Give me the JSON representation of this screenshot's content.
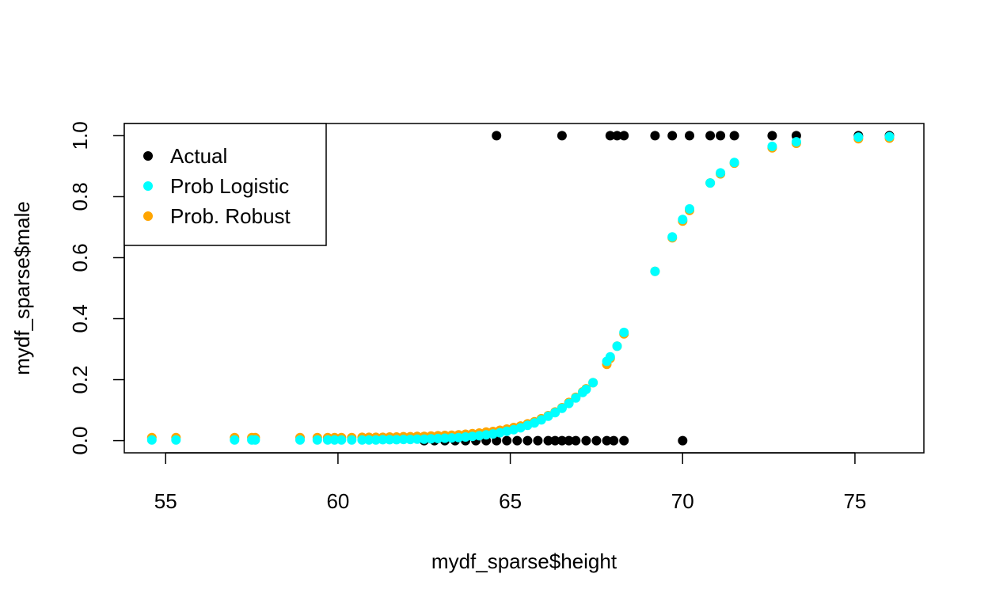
{
  "chart_data": {
    "type": "scatter",
    "title": "",
    "xlabel": "mydf_sparse$height",
    "ylabel": "mydf_sparse$male",
    "xlim": [
      53.8,
      77.0
    ],
    "ylim": [
      -0.04,
      1.04
    ],
    "x_ticks": [
      55,
      60,
      65,
      70,
      75
    ],
    "x_tick_labels": [
      "55",
      "60",
      "65",
      "70",
      "75"
    ],
    "y_ticks": [
      0.0,
      0.2,
      0.4,
      0.6,
      0.8,
      1.0
    ],
    "y_tick_labels": [
      "0.0",
      "0.2",
      "0.4",
      "0.6",
      "0.8",
      "1.0"
    ],
    "grid": false,
    "legend_position": "top-left",
    "series": [
      {
        "name": "Actual",
        "color": "#000000",
        "points": [
          [
            64.6,
            1
          ],
          [
            66.5,
            1
          ],
          [
            67.9,
            1
          ],
          [
            68.1,
            1
          ],
          [
            68.3,
            1
          ],
          [
            69.2,
            1
          ],
          [
            69.7,
            1
          ],
          [
            70.2,
            1
          ],
          [
            70.8,
            1
          ],
          [
            71.1,
            1
          ],
          [
            71.5,
            1
          ],
          [
            72.6,
            1
          ],
          [
            73.3,
            1
          ],
          [
            75.1,
            1
          ],
          [
            76.0,
            1
          ],
          [
            62.5,
            0
          ],
          [
            62.8,
            0
          ],
          [
            63.1,
            0
          ],
          [
            63.4,
            0
          ],
          [
            63.7,
            0
          ],
          [
            64.0,
            0
          ],
          [
            64.3,
            0
          ],
          [
            64.6,
            0
          ],
          [
            64.9,
            0
          ],
          [
            65.2,
            0
          ],
          [
            65.5,
            0
          ],
          [
            65.8,
            0
          ],
          [
            66.1,
            0
          ],
          [
            66.3,
            0
          ],
          [
            66.5,
            0
          ],
          [
            66.7,
            0
          ],
          [
            66.9,
            0
          ],
          [
            67.2,
            0
          ],
          [
            67.5,
            0
          ],
          [
            67.8,
            0
          ],
          [
            68.0,
            0
          ],
          [
            68.3,
            0
          ],
          [
            70.0,
            0
          ]
        ]
      },
      {
        "name": "Prob. Robust",
        "color": "#FFA500",
        "points": [
          [
            54.6,
            0.01
          ],
          [
            55.3,
            0.01
          ],
          [
            57.0,
            0.01
          ],
          [
            57.5,
            0.01
          ],
          [
            57.6,
            0.01
          ],
          [
            58.9,
            0.01
          ],
          [
            59.4,
            0.01
          ],
          [
            59.7,
            0.01
          ],
          [
            59.9,
            0.01
          ],
          [
            60.1,
            0.01
          ],
          [
            60.4,
            0.01
          ],
          [
            60.7,
            0.011
          ],
          [
            60.9,
            0.011
          ],
          [
            61.1,
            0.011
          ],
          [
            61.3,
            0.011
          ],
          [
            61.5,
            0.012
          ],
          [
            61.7,
            0.012
          ],
          [
            61.9,
            0.013
          ],
          [
            62.1,
            0.013
          ],
          [
            62.3,
            0.014
          ],
          [
            62.5,
            0.014
          ],
          [
            62.7,
            0.015
          ],
          [
            62.9,
            0.016
          ],
          [
            63.1,
            0.017
          ],
          [
            63.3,
            0.018
          ],
          [
            63.5,
            0.019
          ],
          [
            63.7,
            0.021
          ],
          [
            63.9,
            0.023
          ],
          [
            64.1,
            0.025
          ],
          [
            64.3,
            0.028
          ],
          [
            64.5,
            0.03
          ],
          [
            64.7,
            0.034
          ],
          [
            64.9,
            0.038
          ],
          [
            65.1,
            0.043
          ],
          [
            65.3,
            0.048
          ],
          [
            65.5,
            0.055
          ],
          [
            65.7,
            0.062
          ],
          [
            65.9,
            0.072
          ],
          [
            66.1,
            0.082
          ],
          [
            66.3,
            0.094
          ],
          [
            66.5,
            0.108
          ],
          [
            66.7,
            0.125
          ],
          [
            66.9,
            0.142
          ],
          [
            67.1,
            0.16
          ],
          [
            67.2,
            0.17
          ],
          [
            67.4,
            0.19
          ],
          [
            67.8,
            0.25
          ],
          [
            67.9,
            0.27
          ],
          [
            68.1,
            0.31
          ],
          [
            68.3,
            0.35
          ],
          [
            69.2,
            0.555
          ],
          [
            69.7,
            0.665
          ],
          [
            70.0,
            0.72
          ],
          [
            70.2,
            0.755
          ],
          [
            70.8,
            0.845
          ],
          [
            71.1,
            0.875
          ],
          [
            71.5,
            0.91
          ],
          [
            72.6,
            0.96
          ],
          [
            73.3,
            0.975
          ],
          [
            75.1,
            0.99
          ],
          [
            76.0,
            0.992
          ]
        ]
      },
      {
        "name": "Prob Logistic",
        "color": "#00FFFF",
        "points": [
          [
            54.6,
            0.002
          ],
          [
            55.3,
            0.002
          ],
          [
            57.0,
            0.002
          ],
          [
            57.5,
            0.002
          ],
          [
            57.6,
            0.002
          ],
          [
            58.9,
            0.002
          ],
          [
            59.4,
            0.002
          ],
          [
            59.7,
            0.002
          ],
          [
            59.9,
            0.002
          ],
          [
            60.1,
            0.002
          ],
          [
            60.4,
            0.002
          ],
          [
            60.7,
            0.002
          ],
          [
            60.9,
            0.002
          ],
          [
            61.1,
            0.002
          ],
          [
            61.3,
            0.003
          ],
          [
            61.5,
            0.003
          ],
          [
            61.7,
            0.003
          ],
          [
            61.9,
            0.004
          ],
          [
            62.1,
            0.004
          ],
          [
            62.3,
            0.005
          ],
          [
            62.5,
            0.005
          ],
          [
            62.7,
            0.006
          ],
          [
            62.9,
            0.007
          ],
          [
            63.1,
            0.008
          ],
          [
            63.3,
            0.009
          ],
          [
            63.5,
            0.01
          ],
          [
            63.7,
            0.012
          ],
          [
            63.9,
            0.014
          ],
          [
            64.1,
            0.016
          ],
          [
            64.3,
            0.019
          ],
          [
            64.5,
            0.022
          ],
          [
            64.7,
            0.026
          ],
          [
            64.9,
            0.031
          ],
          [
            65.1,
            0.036
          ],
          [
            65.3,
            0.042
          ],
          [
            65.5,
            0.05
          ],
          [
            65.7,
            0.058
          ],
          [
            65.9,
            0.068
          ],
          [
            66.1,
            0.08
          ],
          [
            66.3,
            0.092
          ],
          [
            66.5,
            0.106
          ],
          [
            66.7,
            0.122
          ],
          [
            66.9,
            0.14
          ],
          [
            67.1,
            0.158
          ],
          [
            67.2,
            0.168
          ],
          [
            67.4,
            0.19
          ],
          [
            67.8,
            0.26
          ],
          [
            67.9,
            0.275
          ],
          [
            68.1,
            0.31
          ],
          [
            68.3,
            0.355
          ],
          [
            69.2,
            0.555
          ],
          [
            69.7,
            0.668
          ],
          [
            70.0,
            0.725
          ],
          [
            70.2,
            0.76
          ],
          [
            70.8,
            0.845
          ],
          [
            71.1,
            0.878
          ],
          [
            71.5,
            0.912
          ],
          [
            72.6,
            0.965
          ],
          [
            73.3,
            0.98
          ],
          [
            75.1,
            0.995
          ],
          [
            76.0,
            0.997
          ]
        ]
      }
    ],
    "legend": [
      {
        "label": "Actual",
        "color": "#000000"
      },
      {
        "label": "Prob Logistic",
        "color": "#00FFFF"
      },
      {
        "label": "Prob. Robust",
        "color": "#FFA500"
      }
    ]
  }
}
